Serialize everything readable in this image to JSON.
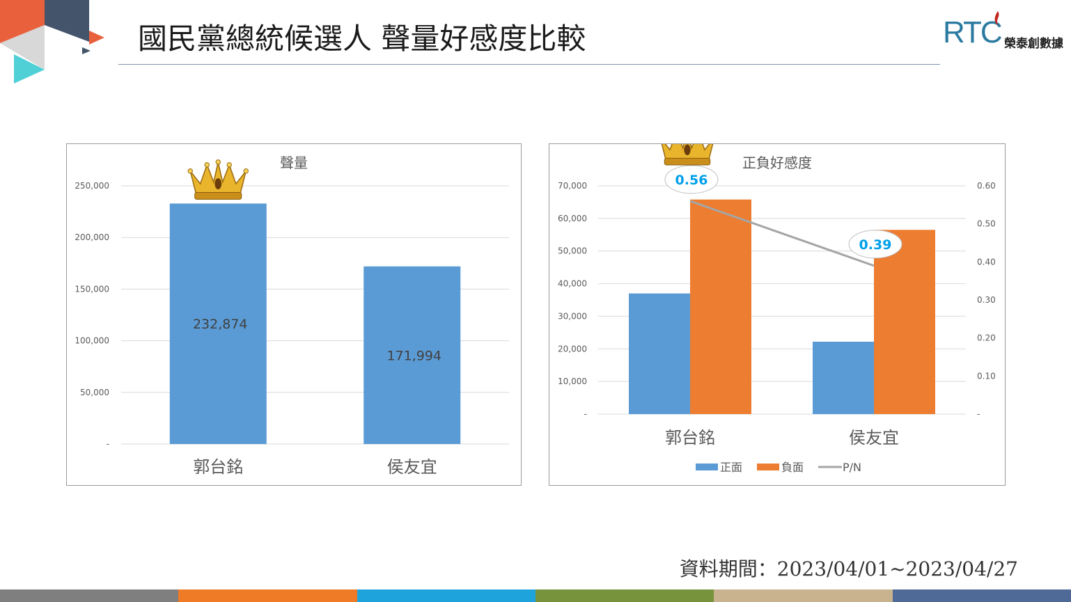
{
  "title": "國民黨總統候選人 聲量好感度比較",
  "brand": {
    "mark": "RTC",
    "name": "榮泰創數據"
  },
  "footer": {
    "period": "資料期間：2023/04/01~2023/04/27"
  },
  "bottom_strip_colors": [
    "#7f7f7f",
    "#f07b27",
    "#1ea3dc",
    "#77933c",
    "#c9b38f",
    "#4f6a96"
  ],
  "chart_data": [
    {
      "type": "bar",
      "title": "聲量",
      "categories": [
        "郭台銘",
        "侯友宜"
      ],
      "values": [
        232874,
        171994
      ],
      "data_labels": [
        "232,874",
        "171,994"
      ],
      "ylim": [
        0,
        250000
      ],
      "yticks": [
        0,
        50000,
        100000,
        150000,
        200000,
        250000
      ],
      "ytick_labels": [
        "-",
        "50,000",
        "100,000",
        "150,000",
        "200,000",
        "250,000"
      ],
      "grid": true,
      "color": "#5b9bd5",
      "highlight_icon": "crown-icon"
    },
    {
      "type": "bar",
      "title": "正負好感度",
      "categories": [
        "郭台銘",
        "侯友宜"
      ],
      "series": [
        {
          "name": "正面",
          "values": [
            37000,
            22200
          ],
          "color": "#5b9bd5"
        },
        {
          "name": "負面",
          "values": [
            65800,
            56500
          ],
          "color": "#ed7d31"
        }
      ],
      "line_series": {
        "name": "P/N",
        "values": [
          0.56,
          0.39
        ],
        "data_labels": [
          "0.56",
          "0.39"
        ],
        "axis": "right",
        "color": "#a5a5a5",
        "label_color": "#00a0e9"
      },
      "ylim": [
        0,
        70000
      ],
      "yticks": [
        0,
        10000,
        20000,
        30000,
        40000,
        50000,
        60000,
        70000
      ],
      "ytick_labels": [
        "-",
        "10,000",
        "20,000",
        "30,000",
        "40,000",
        "50,000",
        "60,000",
        "70,000"
      ],
      "y2lim": [
        0,
        0.6
      ],
      "y2ticks": [
        0,
        0.1,
        0.2,
        0.3,
        0.4,
        0.5,
        0.6
      ],
      "y2tick_labels": [
        "-",
        "0.10",
        "0.20",
        "0.30",
        "0.40",
        "0.50",
        "0.60"
      ],
      "grid": true,
      "legend_position": "bottom",
      "highlight_icon": "crown-icon"
    }
  ]
}
